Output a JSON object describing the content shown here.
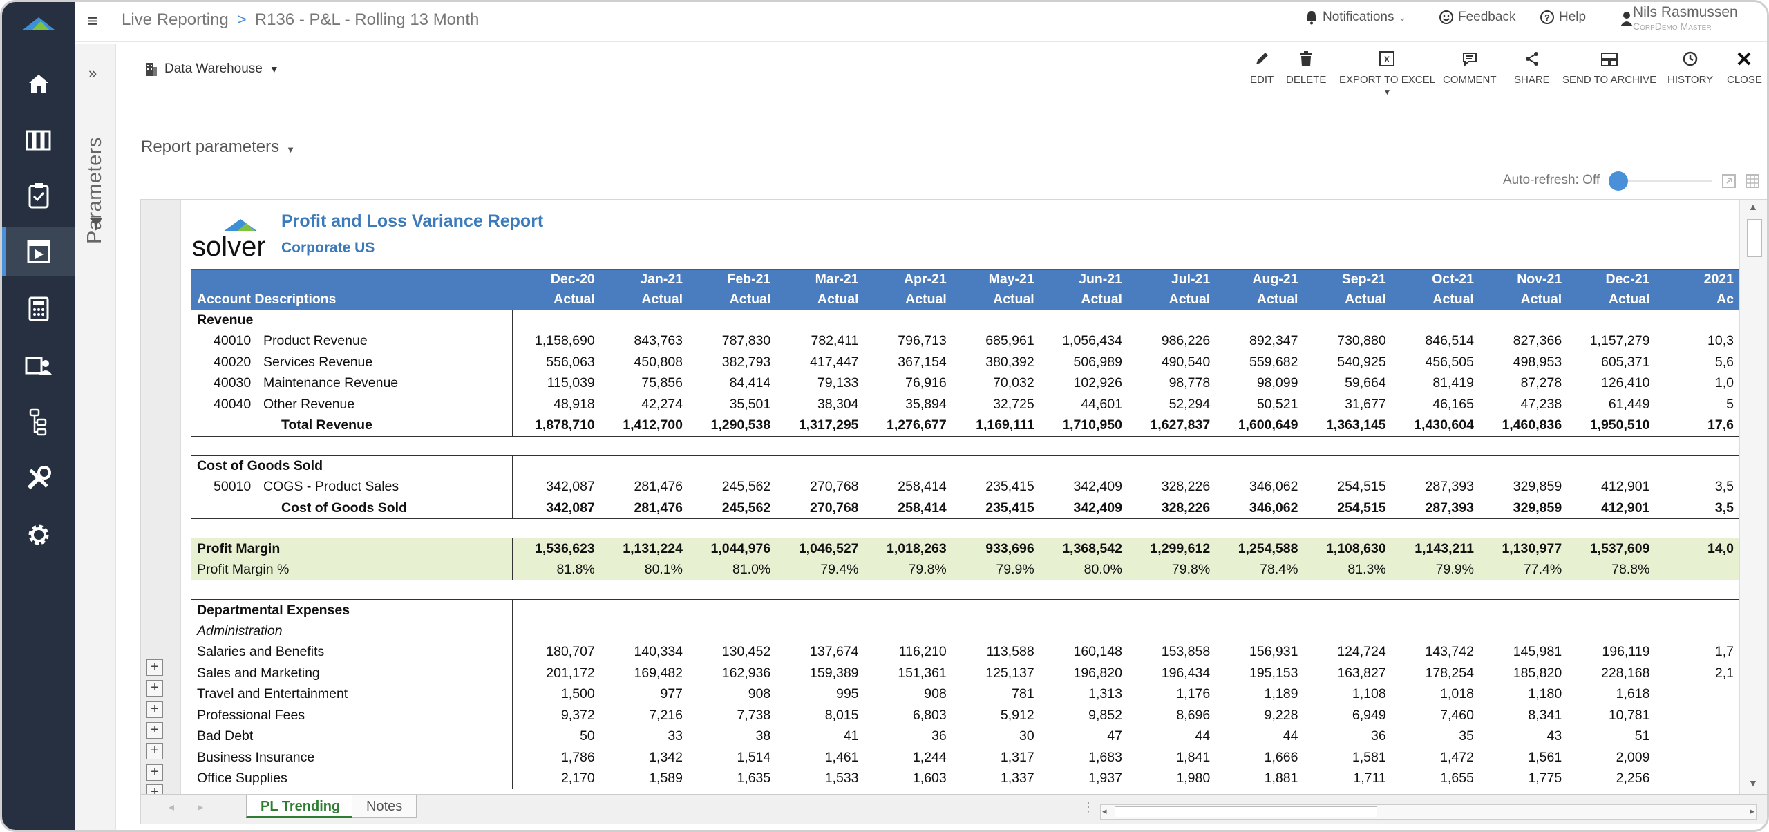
{
  "app": {
    "breadcrumb_root": "Live Reporting",
    "breadcrumb_sep": ">",
    "breadcrumb_page": "R136 - P&L - Rolling 13 Month"
  },
  "topbar": {
    "notifications": "Notifications",
    "feedback": "Feedback",
    "help": "Help",
    "user_name": "Nils Rasmussen",
    "user_sub": "CorpDemo Master"
  },
  "sidebar": {
    "params_label": "Parameters",
    "items": [
      "home-icon",
      "library-icon",
      "clipboard-check-icon",
      "report-play-icon",
      "calculator-icon",
      "user-card-icon",
      "hierarchy-icon",
      "tools-icon",
      "gear-icon"
    ],
    "active_index": 3
  },
  "toolbar": {
    "datasource": "Data Warehouse",
    "edit": "EDIT",
    "delete": "DELETE",
    "export": "EXPORT TO EXCEL",
    "comment": "COMMENT",
    "share": "SHARE",
    "archive": "SEND TO ARCHIVE",
    "history": "HISTORY",
    "close": "CLOSE"
  },
  "params": {
    "label": "Report parameters",
    "autorefresh": "Auto-refresh: Off"
  },
  "report": {
    "logo_text": "solver",
    "title": "Profit and Loss Variance Report",
    "subtitle": "Corporate US",
    "header_desc": "Account Descriptions",
    "months": [
      "Dec-20",
      "Jan-21",
      "Feb-21",
      "Mar-21",
      "Apr-21",
      "May-21",
      "Jun-21",
      "Jul-21",
      "Aug-21",
      "Sep-21",
      "Oct-21",
      "Nov-21",
      "Dec-21",
      "2021"
    ],
    "types": [
      "Actual",
      "Actual",
      "Actual",
      "Actual",
      "Actual",
      "Actual",
      "Actual",
      "Actual",
      "Actual",
      "Actual",
      "Actual",
      "Actual",
      "Actual",
      "Ac"
    ],
    "revenue_label": "Revenue",
    "revenue_rows": [
      {
        "code": "40010",
        "name": "Product Revenue",
        "values": [
          "1,158,690",
          "843,763",
          "787,830",
          "782,411",
          "796,713",
          "685,961",
          "1,056,434",
          "986,226",
          "892,347",
          "730,880",
          "846,514",
          "827,366",
          "1,157,279",
          "10,3"
        ]
      },
      {
        "code": "40020",
        "name": "Services Revenue",
        "values": [
          "556,063",
          "450,808",
          "382,793",
          "417,447",
          "367,154",
          "380,392",
          "506,989",
          "490,540",
          "559,682",
          "540,925",
          "456,505",
          "498,953",
          "605,371",
          "5,6"
        ]
      },
      {
        "code": "40030",
        "name": "Maintenance Revenue",
        "values": [
          "115,039",
          "75,856",
          "84,414",
          "79,133",
          "76,916",
          "70,032",
          "102,926",
          "98,778",
          "98,099",
          "59,664",
          "81,419",
          "87,278",
          "126,410",
          "1,0"
        ]
      },
      {
        "code": "40040",
        "name": "Other Revenue",
        "values": [
          "48,918",
          "42,274",
          "35,501",
          "38,304",
          "35,894",
          "32,725",
          "44,601",
          "52,294",
          "50,521",
          "31,677",
          "46,165",
          "47,238",
          "61,449",
          "5"
        ]
      }
    ],
    "total_revenue": {
      "name": "Total Revenue",
      "values": [
        "1,878,710",
        "1,412,700",
        "1,290,538",
        "1,317,295",
        "1,276,677",
        "1,169,111",
        "1,710,950",
        "1,627,837",
        "1,600,649",
        "1,363,145",
        "1,430,604",
        "1,460,836",
        "1,950,510",
        "17,6"
      ]
    },
    "cogs_label": "Cost of Goods Sold",
    "cogs_rows": [
      {
        "code": "50010",
        "name": "COGS - Product Sales",
        "values": [
          "342,087",
          "281,476",
          "245,562",
          "270,768",
          "258,414",
          "235,415",
          "342,409",
          "328,226",
          "346,062",
          "254,515",
          "287,393",
          "329,859",
          "412,901",
          "3,5"
        ]
      }
    ],
    "total_cogs": {
      "name": "Cost of Goods Sold",
      "values": [
        "342,087",
        "281,476",
        "245,562",
        "270,768",
        "258,414",
        "235,415",
        "342,409",
        "328,226",
        "346,062",
        "254,515",
        "287,393",
        "329,859",
        "412,901",
        "3,5"
      ]
    },
    "profit_margin": {
      "name": "Profit Margin",
      "values": [
        "1,536,623",
        "1,131,224",
        "1,044,976",
        "1,046,527",
        "1,018,263",
        "933,696",
        "1,368,542",
        "1,299,612",
        "1,254,588",
        "1,108,630",
        "1,143,211",
        "1,130,977",
        "1,537,609",
        "14,0"
      ]
    },
    "profit_margin_pct": {
      "name": "Profit Margin %",
      "values": [
        "81.8%",
        "80.1%",
        "81.0%",
        "79.4%",
        "79.8%",
        "79.9%",
        "80.0%",
        "79.8%",
        "78.4%",
        "81.3%",
        "79.9%",
        "77.4%",
        "78.8%",
        ""
      ]
    },
    "dept_label": "Departmental Expenses",
    "dept_sub": "Administration",
    "dept_rows": [
      {
        "name": "Salaries and Benefits",
        "values": [
          "180,707",
          "140,334",
          "130,452",
          "137,674",
          "116,210",
          "113,588",
          "160,148",
          "153,858",
          "156,931",
          "124,724",
          "143,742",
          "145,981",
          "196,119",
          "1,7"
        ]
      },
      {
        "name": "Sales and Marketing",
        "values": [
          "201,172",
          "169,482",
          "162,936",
          "159,389",
          "151,361",
          "125,137",
          "196,820",
          "196,434",
          "195,153",
          "163,827",
          "178,254",
          "185,820",
          "228,168",
          "2,1"
        ]
      },
      {
        "name": "Travel and Entertainment",
        "values": [
          "1,500",
          "977",
          "908",
          "995",
          "908",
          "781",
          "1,313",
          "1,176",
          "1,189",
          "1,108",
          "1,018",
          "1,180",
          "1,618",
          ""
        ]
      },
      {
        "name": "Professional Fees",
        "values": [
          "9,372",
          "7,216",
          "7,738",
          "8,015",
          "6,803",
          "5,912",
          "9,852",
          "8,696",
          "9,228",
          "6,949",
          "7,460",
          "8,341",
          "10,781",
          ""
        ]
      },
      {
        "name": "Bad Debt",
        "values": [
          "50",
          "33",
          "38",
          "41",
          "36",
          "30",
          "47",
          "44",
          "44",
          "36",
          "35",
          "43",
          "51",
          ""
        ]
      },
      {
        "name": "Business Insurance",
        "values": [
          "1,786",
          "1,342",
          "1,514",
          "1,461",
          "1,244",
          "1,317",
          "1,683",
          "1,841",
          "1,666",
          "1,581",
          "1,472",
          "1,561",
          "2,009",
          ""
        ]
      },
      {
        "name": "Office Supplies",
        "values": [
          "2,170",
          "1,589",
          "1,635",
          "1,533",
          "1,603",
          "1,337",
          "1,937",
          "1,980",
          "1,881",
          "1,711",
          "1,655",
          "1,775",
          "2,256",
          ""
        ]
      }
    ]
  },
  "tabs": {
    "pl_trending": "PL Trending",
    "notes": "Notes"
  }
}
